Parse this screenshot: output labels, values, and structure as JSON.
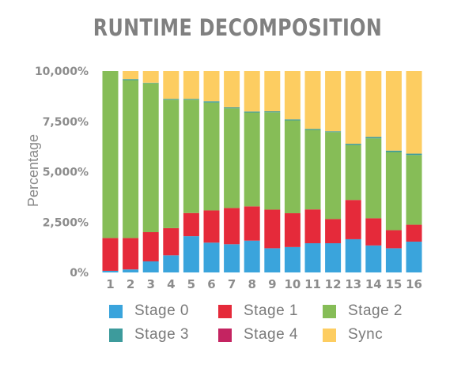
{
  "chart_data": {
    "type": "bar",
    "stacked": true,
    "title": "RUNTIME DECOMPOSITION",
    "xlabel": "",
    "ylabel": "Percentage",
    "ylim": [
      0,
      10000
    ],
    "yticks": [
      0,
      2500,
      5000,
      7500,
      10000
    ],
    "ytick_labels": [
      "0%",
      "2,500%",
      "5,000%",
      "7,500%",
      "10,000%"
    ],
    "categories": [
      "1",
      "2",
      "3",
      "4",
      "5",
      "6",
      "7",
      "8",
      "9",
      "10",
      "11",
      "12",
      "13",
      "14",
      "15",
      "16"
    ],
    "grid": false,
    "legend_position": "bottom",
    "series": [
      {
        "name": "Stage 0",
        "color": "#3aa4dc",
        "values": [
          80,
          150,
          550,
          850,
          1800,
          1480,
          1400,
          1580,
          1200,
          1260,
          1450,
          1450,
          1650,
          1340,
          1200,
          1530
        ]
      },
      {
        "name": "Stage 1",
        "color": "#e52a3a",
        "values": [
          1630,
          1560,
          1450,
          1350,
          1150,
          1600,
          1800,
          1700,
          1920,
          1680,
          1680,
          1200,
          1950,
          1350,
          900,
          840
        ]
      },
      {
        "name": "Stage 2",
        "color": "#86bd57",
        "values": [
          8290,
          7840,
          7400,
          6380,
          5630,
          5360,
          4950,
          4660,
          4830,
          4610,
          3950,
          4320,
          2730,
          3970,
          3880,
          3460
        ]
      },
      {
        "name": "Stage 3",
        "color": "#3d9b9c",
        "values": [
          0,
          50,
          20,
          40,
          40,
          60,
          50,
          50,
          50,
          50,
          50,
          40,
          60,
          70,
          70,
          70
        ]
      },
      {
        "name": "Stage 4",
        "color": "#c42461",
        "values": [
          0,
          0,
          0,
          0,
          0,
          0,
          0,
          0,
          0,
          0,
          0,
          0,
          0,
          0,
          0,
          0
        ]
      },
      {
        "name": "Sync",
        "color": "#fdcd61",
        "values": [
          0,
          400,
          580,
          1380,
          1380,
          1500,
          1800,
          2010,
          2000,
          2400,
          2870,
          2990,
          3610,
          3270,
          3950,
          4100
        ]
      }
    ]
  }
}
